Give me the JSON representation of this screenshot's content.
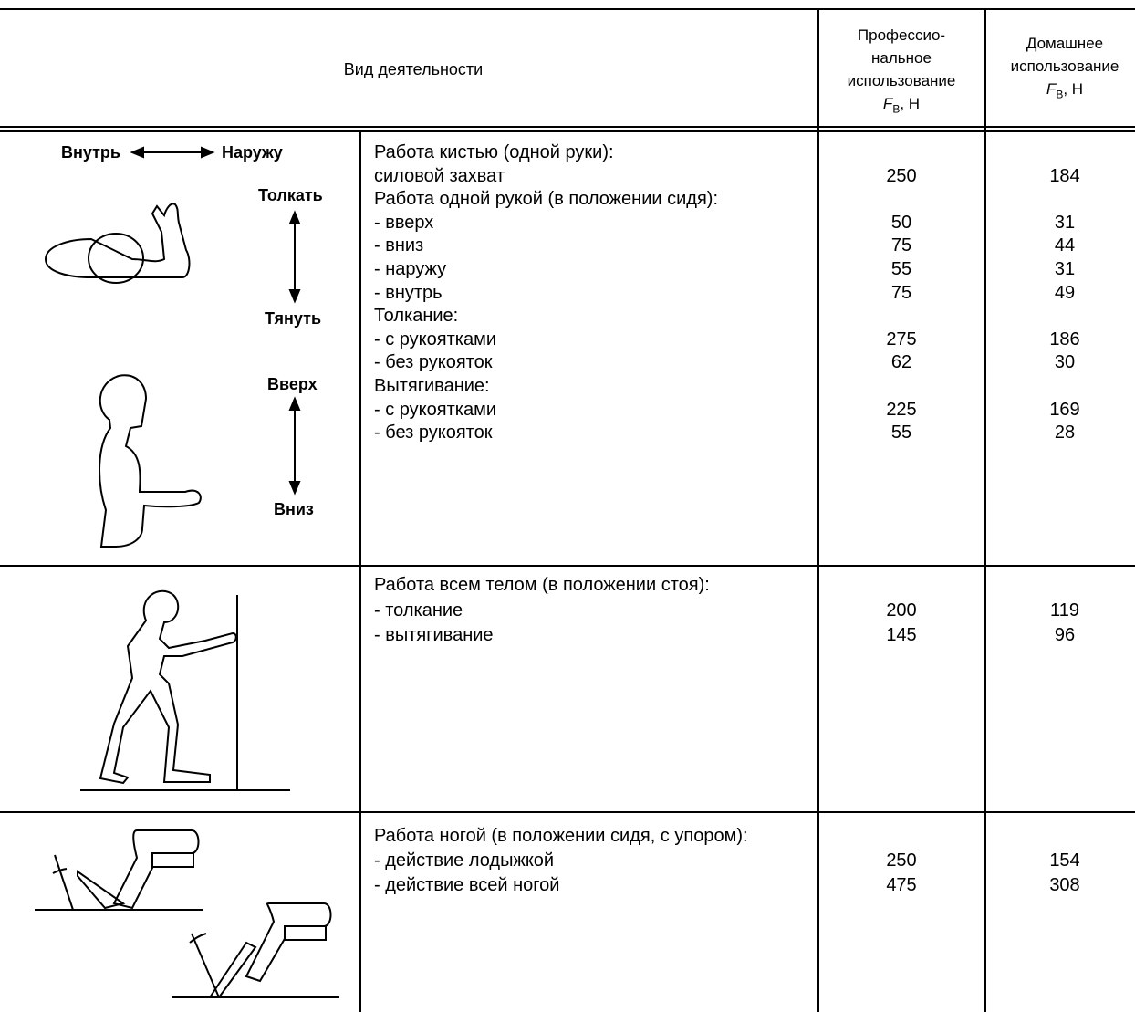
{
  "header": {
    "activity": "Вид деятельности",
    "professional": {
      "lines": [
        "Профессио-",
        "нальное",
        "использование"
      ],
      "symbol": "F",
      "subscript": "В",
      "suffix": ", Н"
    },
    "home": {
      "lines": [
        "Домашнее",
        "использование"
      ],
      "symbol": "F",
      "subscript": "В",
      "suffix": ", Н"
    }
  },
  "rows": [
    {
      "figure_labels": [
        "Внутрь",
        "Наружу",
        "Толкать",
        "Тянуть",
        "Вверх",
        "Вниз"
      ],
      "lines": [
        {
          "text": "Работа кистью (одной руки):"
        },
        {
          "text": "силовой захват",
          "professional": 250,
          "home": 184
        },
        {
          "text": "Работа одной рукой (в положении сидя):"
        },
        {
          "text": "- вверх",
          "professional": 50,
          "home": 31
        },
        {
          "text": "- вниз",
          "professional": 75,
          "home": 44
        },
        {
          "text": "- наружу",
          "professional": 55,
          "home": 31
        },
        {
          "text": "- внутрь",
          "professional": 75,
          "home": 49
        },
        {
          "text": "Толкание:"
        },
        {
          "text": "- с рукоятками",
          "professional": 275,
          "home": 186
        },
        {
          "text": "- без рукояток",
          "professional": 62,
          "home": 30
        },
        {
          "text": "Вытягивание:"
        },
        {
          "text": "- с рукоятками",
          "professional": 225,
          "home": 169
        },
        {
          "text": "- без рукояток",
          "professional": 55,
          "home": 28
        }
      ]
    },
    {
      "lines": [
        {
          "text": "Работа всем телом (в положении стоя):"
        },
        {
          "text": "- толкание",
          "professional": 200,
          "home": 119
        },
        {
          "text": "- вытягивание",
          "professional": 145,
          "home": 96
        }
      ]
    },
    {
      "lines": [
        {
          "text": "Работа ногой (в положении сидя, с упором):"
        },
        {
          "text": "- действие лодыжкой",
          "professional": 250,
          "home": 154
        },
        {
          "text": "- действие всей ногой",
          "professional": 475,
          "home": 308
        }
      ]
    }
  ]
}
